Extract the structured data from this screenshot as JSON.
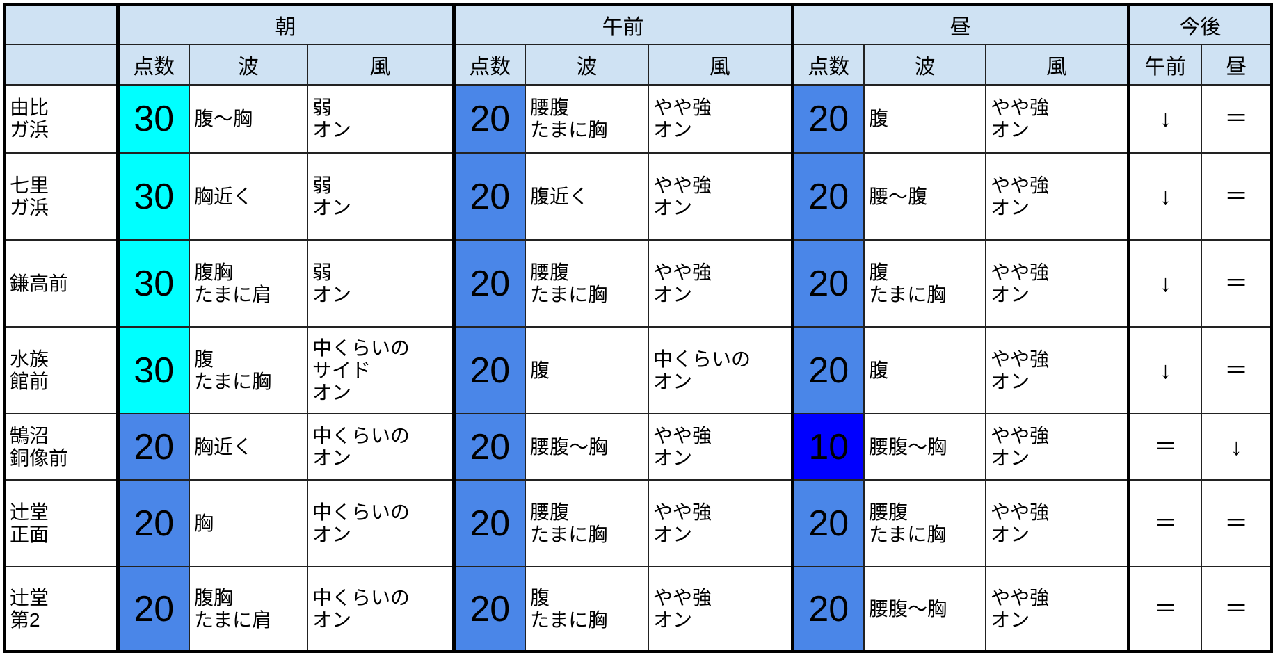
{
  "colors": {
    "header": "#cfe2f3",
    "score30": "#00ffff",
    "score20": "#4a86e8",
    "score10": "#0000ff"
  },
  "header": {
    "groups": [
      "朝",
      "午前",
      "昼",
      "今後"
    ],
    "sub": [
      "点数",
      "波",
      "風"
    ],
    "future_sub": [
      "午前",
      "昼"
    ]
  },
  "rows": [
    {
      "name": "由比\nガ浜",
      "cells": [
        [
          "30",
          "腹〜胸",
          "弱\nオン"
        ],
        [
          "20",
          "腰腹\nたまに胸",
          "やや強\nオン"
        ],
        [
          "20",
          "腹",
          "やや強\nオン"
        ]
      ],
      "future": [
        "↓",
        "＝"
      ]
    },
    {
      "name": "七里\nガ浜",
      "cells": [
        [
          "30",
          "胸近く",
          "弱\nオン"
        ],
        [
          "20",
          "腹近く",
          "やや強\nオン"
        ],
        [
          "20",
          "腰〜腹",
          "やや強\nオン"
        ]
      ],
      "future": [
        "↓",
        "＝"
      ]
    },
    {
      "name": "鎌高前",
      "cells": [
        [
          "30",
          "腹胸\nたまに肩",
          "弱\nオン"
        ],
        [
          "20",
          "腰腹\nたまに胸",
          "やや強\nオン"
        ],
        [
          "20",
          "腹\nたまに胸",
          "やや強\nオン"
        ]
      ],
      "future": [
        "↓",
        "＝"
      ]
    },
    {
      "name": "水族\n館前",
      "cells": [
        [
          "30",
          "腹\nたまに胸",
          "中くらいの\nサイド\nオン"
        ],
        [
          "20",
          "腹",
          "中くらいの\nオン"
        ],
        [
          "20",
          "腹",
          "やや強\nオン"
        ]
      ],
      "future": [
        "↓",
        "＝"
      ]
    },
    {
      "name": "鵠沼\n銅像前",
      "cells": [
        [
          "20",
          "胸近く",
          "中くらいの\nオン"
        ],
        [
          "20",
          "腰腹〜胸",
          "やや強\nオン"
        ],
        [
          "10",
          "腰腹〜胸",
          "やや強\nオン"
        ]
      ],
      "future": [
        "＝",
        "↓"
      ]
    },
    {
      "name": "辻堂\n正面",
      "cells": [
        [
          "20",
          "胸",
          "中くらいの\nオン"
        ],
        [
          "20",
          "腰腹\nたまに胸",
          "やや強\nオン"
        ],
        [
          "20",
          "腰腹\nたまに胸",
          "やや強\nオン"
        ]
      ],
      "future": [
        "＝",
        "＝"
      ]
    },
    {
      "name": "辻堂\n第2",
      "cells": [
        [
          "20",
          "腹胸\nたまに肩",
          "中くらいの\nオン"
        ],
        [
          "20",
          "腹\nたまに胸",
          "やや強\nオン"
        ],
        [
          "20",
          "腰腹〜胸",
          "やや強\nオン"
        ]
      ],
      "future": [
        "＝",
        "＝"
      ]
    }
  ]
}
